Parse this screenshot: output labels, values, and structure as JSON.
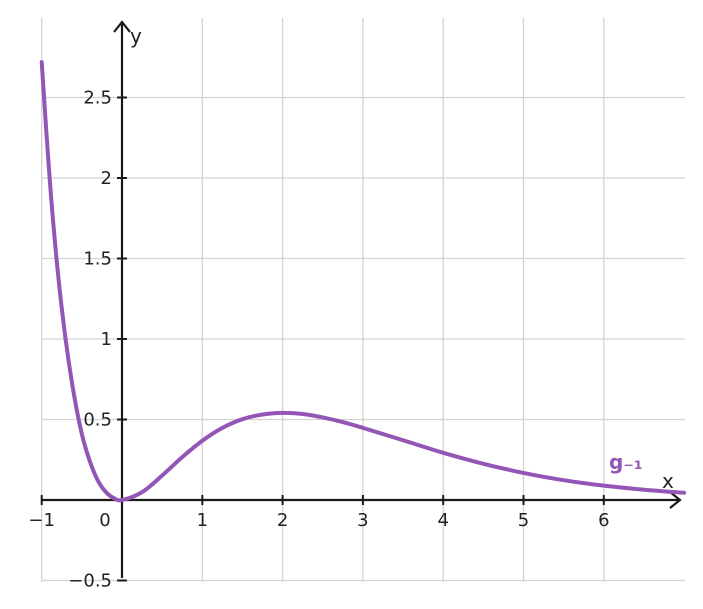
{
  "chart_data": {
    "type": "line",
    "title": "",
    "xlabel": "x",
    "ylabel": "y",
    "xlim": [
      -1,
      7
    ],
    "ylim": [
      -0.5,
      3
    ],
    "grid": true,
    "x_ticks": [
      {
        "value": -1,
        "label": "−1"
      },
      {
        "value": 0,
        "label": "0"
      },
      {
        "value": 1,
        "label": "1"
      },
      {
        "value": 2,
        "label": "2"
      },
      {
        "value": 3,
        "label": "3"
      },
      {
        "value": 4,
        "label": "4"
      },
      {
        "value": 5,
        "label": "5"
      },
      {
        "value": 6,
        "label": "6"
      }
    ],
    "y_ticks": [
      {
        "value": -0.5,
        "label": "−0.5"
      },
      {
        "value": 0.5,
        "label": "0.5"
      },
      {
        "value": 1,
        "label": "1"
      },
      {
        "value": 1.5,
        "label": "1.5"
      },
      {
        "value": 2,
        "label": "2"
      },
      {
        "value": 2.5,
        "label": "2.5"
      }
    ],
    "series": [
      {
        "name": "g₋₁",
        "color": "#9356b6",
        "x": [
          -1,
          -0.9,
          -0.8,
          -0.7,
          -0.6,
          -0.5,
          -0.4,
          -0.3,
          -0.2,
          -0.1,
          0,
          0.25,
          0.5,
          0.75,
          1,
          1.25,
          1.5,
          1.75,
          2,
          2.25,
          2.5,
          2.75,
          3,
          3.5,
          4,
          4.5,
          5,
          5.5,
          6,
          6.5,
          7
        ],
        "y": [
          2.72,
          1.99,
          1.42,
          0.99,
          0.66,
          0.41,
          0.24,
          0.12,
          0.049,
          0.011,
          0,
          0.049,
          0.152,
          0.266,
          0.368,
          0.448,
          0.502,
          0.531,
          0.541,
          0.534,
          0.513,
          0.484,
          0.448,
          0.371,
          0.293,
          0.225,
          0.168,
          0.123,
          0.089,
          0.064,
          0.045
        ]
      }
    ]
  }
}
